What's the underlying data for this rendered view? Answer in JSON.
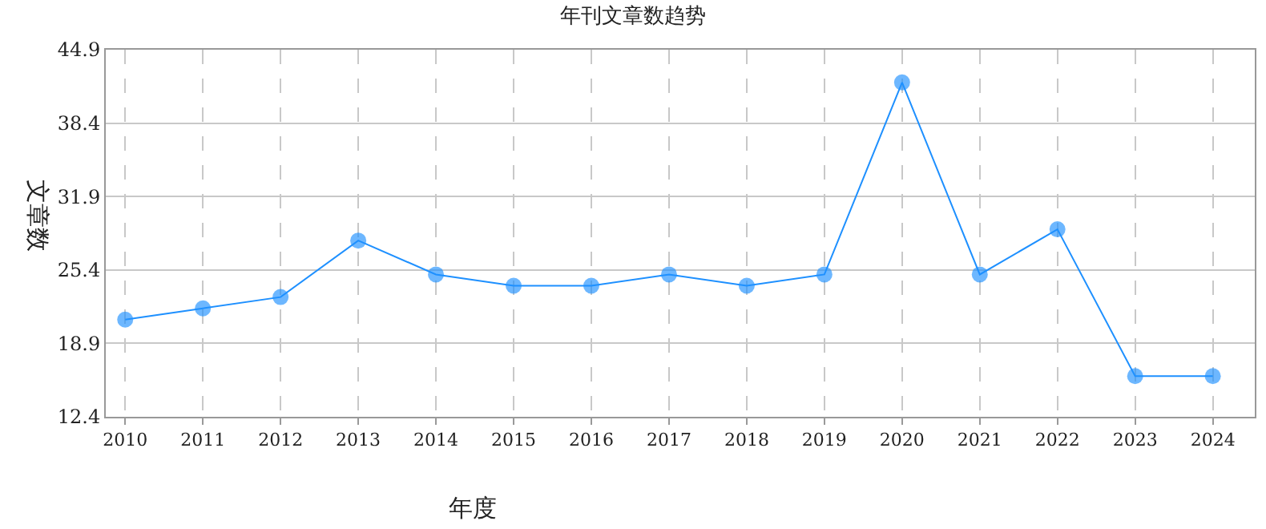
{
  "chart_data": {
    "type": "line",
    "title": "年刊文章数趋势",
    "xlabel": "年度",
    "ylabel": "文章数",
    "categories": [
      "2010",
      "2011",
      "2012",
      "2013",
      "2014",
      "2015",
      "2016",
      "2017",
      "2018",
      "2019",
      "2020",
      "2021",
      "2022",
      "2023",
      "2024"
    ],
    "series": [
      {
        "color": "#1e90ff",
        "values": [
          21,
          22,
          23,
          28,
          25,
          24,
          24,
          25,
          24,
          25,
          42,
          25,
          29,
          16,
          16
        ]
      }
    ],
    "ylim": [
      12.4,
      44.9
    ],
    "yticks": [
      12.4,
      18.9,
      25.4,
      31.9,
      38.4,
      44.9
    ],
    "grid": true,
    "marker": "circle",
    "line_style": "solid"
  }
}
